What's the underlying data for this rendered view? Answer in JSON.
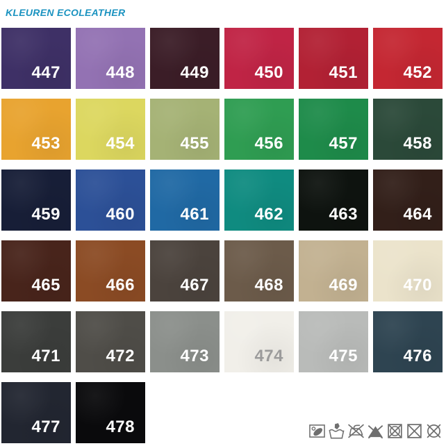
{
  "title": "KLEUREN ECOLEATHER",
  "accent_color": "#1b93c0",
  "icon_color": "#6f6f6f",
  "swatches": [
    {
      "code": "447",
      "color": "#3e3066",
      "code_color": "#ffffff"
    },
    {
      "code": "448",
      "color": "#9372b3",
      "code_color": "#ffffff"
    },
    {
      "code": "449",
      "color": "#3b1d27",
      "code_color": "#ffffff"
    },
    {
      "code": "450",
      "color": "#c02445",
      "code_color": "#ffffff"
    },
    {
      "code": "451",
      "color": "#b22134",
      "code_color": "#ffffff"
    },
    {
      "code": "452",
      "color": "#c42732",
      "code_color": "#ffffff"
    },
    {
      "code": "453",
      "color": "#e8a32f",
      "code_color": "#ffffff"
    },
    {
      "code": "454",
      "color": "#dcd75f",
      "code_color": "#ffffff"
    },
    {
      "code": "455",
      "color": "#a5b275",
      "code_color": "#ffffff"
    },
    {
      "code": "456",
      "color": "#2f9d52",
      "code_color": "#ffffff"
    },
    {
      "code": "457",
      "color": "#1e8b4a",
      "code_color": "#ffffff"
    },
    {
      "code": "458",
      "color": "#2b4939",
      "code_color": "#ffffff"
    },
    {
      "code": "459",
      "color": "#171e37",
      "code_color": "#ffffff"
    },
    {
      "code": "460",
      "color": "#2c5097",
      "code_color": "#ffffff"
    },
    {
      "code": "461",
      "color": "#2069a4",
      "code_color": "#ffffff"
    },
    {
      "code": "462",
      "color": "#0f8b80",
      "code_color": "#ffffff"
    },
    {
      "code": "463",
      "color": "#0e130f",
      "code_color": "#ffffff"
    },
    {
      "code": "464",
      "color": "#321f19",
      "code_color": "#ffffff"
    },
    {
      "code": "465",
      "color": "#48241b",
      "code_color": "#ffffff"
    },
    {
      "code": "466",
      "color": "#8b4b24",
      "code_color": "#ffffff"
    },
    {
      "code": "467",
      "color": "#4b433d",
      "code_color": "#ffffff"
    },
    {
      "code": "468",
      "color": "#6c5b4a",
      "code_color": "#ffffff"
    },
    {
      "code": "469",
      "color": "#c2b191",
      "code_color": "#ffffff"
    },
    {
      "code": "470",
      "color": "#ebe3cb",
      "code_color": "#ffffff"
    },
    {
      "code": "471",
      "color": "#3b3d3b",
      "code_color": "#ffffff"
    },
    {
      "code": "472",
      "color": "#4f4d48",
      "code_color": "#ffffff"
    },
    {
      "code": "473",
      "color": "#8b8f8b",
      "code_color": "#ffffff"
    },
    {
      "code": "474",
      "color": "#f1efe9",
      "code_color": "#9b9b9b"
    },
    {
      "code": "475",
      "color": "#b9bbb9",
      "code_color": "#ffffff"
    },
    {
      "code": "476",
      "color": "#2e4451",
      "code_color": "#ffffff"
    },
    {
      "code": "477",
      "color": "#222631",
      "code_color": "#ffffff"
    },
    {
      "code": "478",
      "color": "#0a0a0c",
      "code_color": "#ffffff"
    }
  ],
  "care_icons": [
    {
      "name": "wipe-clean-icon"
    },
    {
      "name": "hand-wash-icon"
    },
    {
      "name": "do-not-iron-icon"
    },
    {
      "name": "do-not-bleach-icon"
    },
    {
      "name": "do-not-tumble-dry-icon"
    },
    {
      "name": "do-not-dry-icon"
    },
    {
      "name": "do-not-dry-clean-icon"
    }
  ]
}
